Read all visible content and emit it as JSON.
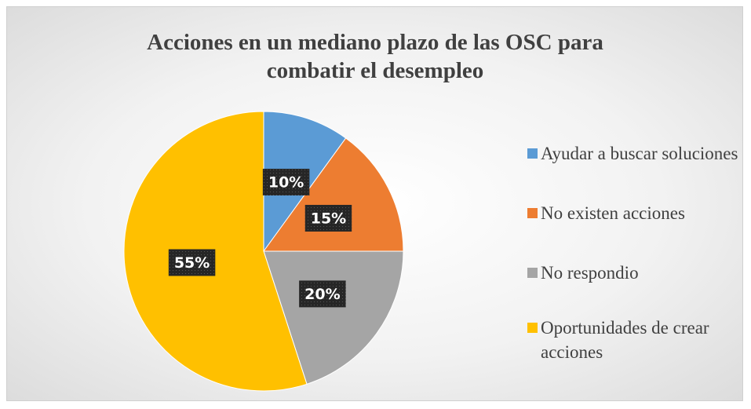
{
  "chart_data": {
    "type": "pie",
    "title": "Acciones en un mediano plazo de las OSC para combatir el desempleo",
    "categories": [
      "Ayudar a buscar soluciones",
      "No existen acciones",
      "No respondio",
      "Oportunidades de crear acciones"
    ],
    "values": [
      10,
      15,
      20,
      55
    ],
    "value_labels": [
      "10%",
      "15%",
      "20%",
      "55%"
    ],
    "colors": [
      "#5b9bd5",
      "#ed7d31",
      "#a5a5a5",
      "#ffc000"
    ],
    "legend": "right"
  }
}
